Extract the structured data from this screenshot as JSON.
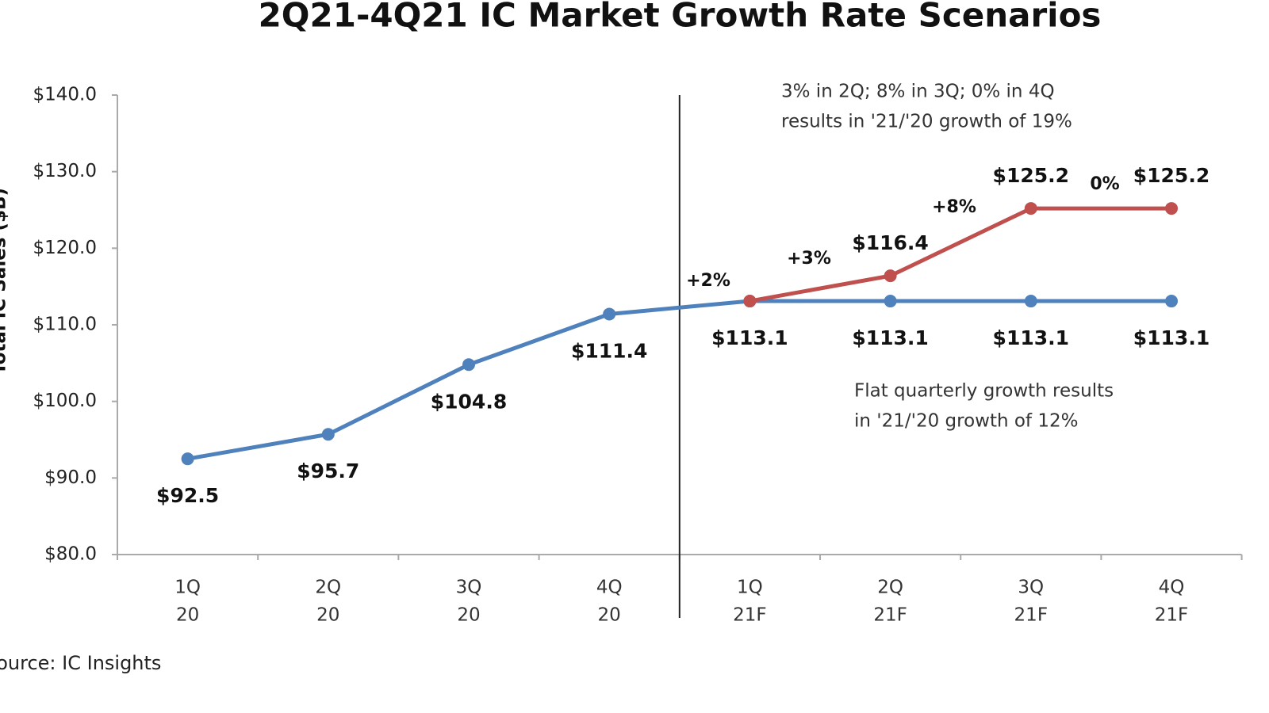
{
  "chart_data": {
    "type": "line",
    "title": "2Q21-4Q21 IC Market Growth Rate Scenarios",
    "y_label": "Total IC Sales ($B)",
    "source": "Source:  IC Insights",
    "categories": [
      [
        "1Q",
        "20"
      ],
      [
        "2Q",
        "20"
      ],
      [
        "3Q",
        "20"
      ],
      [
        "4Q",
        "20"
      ],
      [
        "1Q",
        "21F"
      ],
      [
        "2Q",
        "21F"
      ],
      [
        "3Q",
        "21F"
      ],
      [
        "4Q",
        "21F"
      ]
    ],
    "series": [
      {
        "color": "#4f81bd",
        "values": [
          92.5,
          95.7,
          104.8,
          111.4,
          113.1,
          113.1,
          113.1,
          113.1
        ],
        "value_labels": [
          "$92.5",
          "$95.7",
          "$104.8",
          "$111.4",
          "$113.1",
          "$113.1",
          "$113.1",
          "$113.1"
        ]
      },
      {
        "color": "#c0504d",
        "values": [
          null,
          null,
          null,
          null,
          113.1,
          116.4,
          125.2,
          125.2
        ],
        "value_labels": [
          null,
          null,
          null,
          null,
          null,
          "$116.4",
          "$125.2",
          "$125.2"
        ]
      }
    ],
    "annotations": [
      "+2%",
      "+3%",
      "+8%",
      "0%"
    ],
    "notes": [
      [
        "3% in 2Q; 8% in 3Q; 0% in 4Q",
        "results in '21/'20 growth of 19%"
      ],
      [
        "Flat quarterly growth results",
        "in '21/'20 growth of 12%"
      ]
    ],
    "ylim": [
      80,
      140
    ],
    "yticks": [
      {
        "value": 80,
        "label": "$80.0"
      },
      {
        "value": 90,
        "label": "$90.0"
      },
      {
        "value": 100,
        "label": "$100.0"
      },
      {
        "value": 110,
        "label": "$110.0"
      },
      {
        "value": 120,
        "label": "$120.0"
      },
      {
        "value": 130,
        "label": "$130.0"
      },
      {
        "value": 140,
        "label": "$140.0"
      }
    ]
  }
}
